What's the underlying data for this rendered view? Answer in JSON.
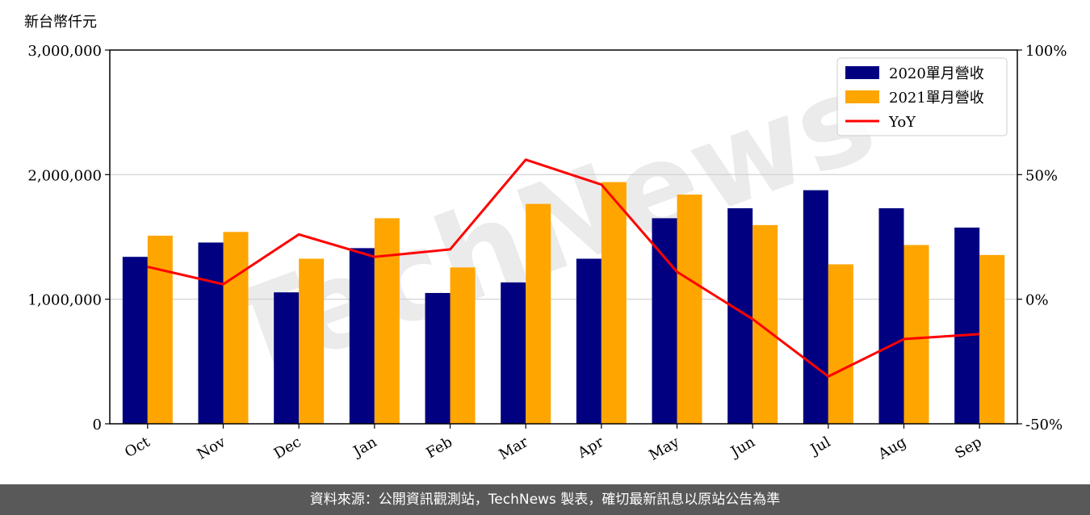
{
  "chart_data": {
    "type": "bar",
    "y_unit": "新台幣仟元",
    "categories": [
      "Oct",
      "Nov",
      "Dec",
      "Jan",
      "Feb",
      "Mar",
      "Apr",
      "May",
      "Jun",
      "Jul",
      "Aug",
      "Sep"
    ],
    "series": [
      {
        "name": "2020單月營收",
        "type": "bar",
        "axis": "left",
        "color": "#000080",
        "values": [
          1340000,
          1455000,
          1055000,
          1410000,
          1050000,
          1135000,
          1325000,
          1650000,
          1730000,
          1875000,
          1730000,
          1575000
        ]
      },
      {
        "name": "2021單月營收",
        "type": "bar",
        "axis": "left",
        "color": "#FFA500",
        "values": [
          1510000,
          1540000,
          1325000,
          1650000,
          1255000,
          1765000,
          1940000,
          1840000,
          1595000,
          1280000,
          1435000,
          1355000
        ]
      }
    ],
    "line_series": {
      "name": "YoY",
      "type": "line",
      "axis": "right",
      "color": "#FF0000",
      "values": [
        13,
        6,
        26,
        17,
        20,
        56,
        46,
        11,
        -8,
        -31,
        -16,
        -14
      ]
    },
    "y_left": {
      "min": 0,
      "max": 3000000,
      "ticks": [
        0,
        1000000,
        2000000,
        3000000
      ],
      "tick_labels": [
        "0",
        "1,000,000",
        "2,000,000",
        "3,000,000"
      ]
    },
    "y_right": {
      "min": -50,
      "max": 100,
      "ticks": [
        -50,
        0,
        50,
        100
      ],
      "tick_labels": [
        "-50%",
        "0%",
        "50%",
        "100%"
      ]
    },
    "grid": true,
    "legend_position": "top-right"
  },
  "watermark": "TechNews",
  "footer": {
    "text": "資料來源：公開資訊觀測站，TechNews 製表，確切最新訊息以原站公告為準"
  }
}
